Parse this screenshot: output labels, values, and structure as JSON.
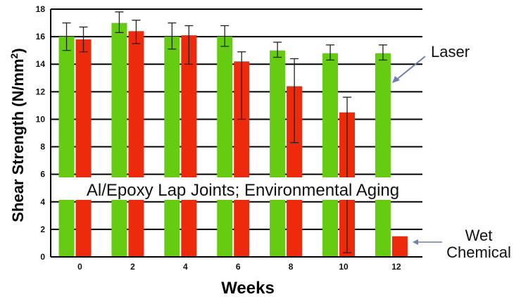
{
  "chart_data": {
    "type": "bar",
    "title": "Al/Epoxy Lap Joints; Environmental Aging",
    "xlabel": "Weeks",
    "ylabel": "Shear Strength (N/mm",
    "ylabel_sup": "2",
    "ylabel_close": ")",
    "ylim": [
      0,
      18
    ],
    "yticks": [
      "0",
      "2",
      "4",
      "6",
      "8",
      "10",
      "12",
      "14",
      "16",
      "18"
    ],
    "categories": [
      "0",
      "2",
      "4",
      "6",
      "8",
      "10",
      "12"
    ],
    "series": [
      {
        "name": "Laser",
        "color": "#66cc11",
        "values": [
          16.0,
          17.0,
          16.0,
          16.0,
          15.0,
          14.8,
          14.8
        ],
        "err_low": [
          15.0,
          16.3,
          15.1,
          15.3,
          14.5,
          14.3,
          14.3
        ],
        "err_high": [
          17.0,
          17.8,
          17.0,
          16.8,
          15.6,
          15.4,
          15.4
        ]
      },
      {
        "name": "Wet Chemical",
        "color": "#ee2a0c",
        "values": [
          15.8,
          16.4,
          16.1,
          14.2,
          12.4,
          10.5,
          1.5
        ],
        "err_low": [
          14.9,
          15.5,
          14.0,
          10.0,
          8.3,
          0.3,
          null
        ],
        "err_high": [
          16.7,
          17.2,
          16.8,
          14.9,
          14.4,
          11.6,
          null
        ]
      }
    ],
    "annotations": {
      "laser": "Laser",
      "wet_line1": "Wet",
      "wet_line2": "Chemical"
    },
    "grid": true
  }
}
